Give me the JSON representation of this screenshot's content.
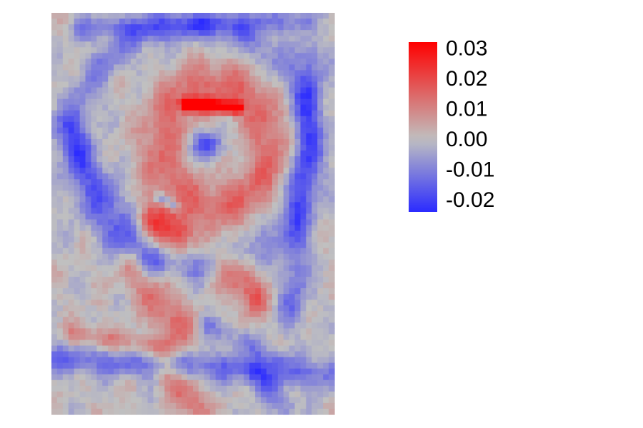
{
  "chart_data": {
    "type": "heatmap",
    "title": "",
    "xlabel": "",
    "ylabel": "",
    "axes_visible": false,
    "grid": false,
    "legend_position": "right",
    "value_range": [
      -0.024,
      0.032
    ],
    "colorscale": {
      "low": "#2b2bff",
      "mid": "#c0c0c0",
      "high": "#ff0000",
      "midpoint": 0
    },
    "colorbar_ticks": [
      {
        "value": 0.03,
        "label": "0.03"
      },
      {
        "value": 0.02,
        "label": "0.02"
      },
      {
        "value": 0.01,
        "label": "0.01"
      },
      {
        "value": 0.0,
        "label": "0.00"
      },
      {
        "value": -0.01,
        "label": "-0.01"
      },
      {
        "value": -0.02,
        "label": "-0.02"
      }
    ],
    "grid_shape": {
      "rows": 70,
      "cols": 50
    },
    "features": [
      {
        "kind": "ring",
        "cx": 0.58,
        "cy": 0.33,
        "rx": 0.19,
        "ry": 0.15,
        "width": 0.045,
        "value": 0.014
      },
      {
        "kind": "bar",
        "x1": 0.47,
        "y1": 0.227,
        "x2": 0.66,
        "y2": 0.236,
        "width": 0.012,
        "value": 0.032
      },
      {
        "kind": "blob",
        "cx": 0.55,
        "cy": 0.33,
        "rx": 0.06,
        "ry": 0.035,
        "value": -0.018
      },
      {
        "kind": "bar",
        "x1": 0.35,
        "y1": 0.52,
        "x2": 0.45,
        "y2": 0.55,
        "width": 0.035,
        "value": 0.02
      },
      {
        "kind": "bar",
        "x1": 0.3,
        "y1": 0.63,
        "x2": 0.45,
        "y2": 0.79,
        "width": 0.04,
        "value": 0.014
      },
      {
        "kind": "bar",
        "x1": 0.62,
        "y1": 0.63,
        "x2": 0.72,
        "y2": 0.71,
        "width": 0.035,
        "value": 0.016
      },
      {
        "kind": "bar",
        "x1": 0.05,
        "y1": 0.29,
        "x2": 0.35,
        "y2": 0.63,
        "width": 0.035,
        "value": -0.012
      },
      {
        "kind": "bar",
        "x1": 0.92,
        "y1": 0.12,
        "x2": 0.85,
        "y2": 0.74,
        "width": 0.035,
        "value": -0.012
      },
      {
        "kind": "bar",
        "x1": 0.02,
        "y1": 0.86,
        "x2": 0.98,
        "y2": 0.9,
        "width": 0.025,
        "value": -0.013
      },
      {
        "kind": "bar",
        "x1": 0.1,
        "y1": 0.04,
        "x2": 0.9,
        "y2": 0.02,
        "width": 0.02,
        "value": -0.011
      },
      {
        "kind": "bar",
        "x1": 0.42,
        "y1": 0.9,
        "x2": 0.52,
        "y2": 0.99,
        "width": 0.03,
        "value": 0.014
      },
      {
        "kind": "bar",
        "x1": 0.72,
        "y1": 0.9,
        "x2": 0.83,
        "y2": 0.98,
        "width": 0.025,
        "value": -0.01
      },
      {
        "kind": "bar",
        "x1": 0.38,
        "y1": 0.46,
        "x2": 0.44,
        "y2": 0.48,
        "width": 0.01,
        "value": -0.016
      },
      {
        "kind": "bar",
        "x1": 0.08,
        "y1": 0.8,
        "x2": 0.4,
        "y2": 0.84,
        "width": 0.02,
        "value": 0.01
      },
      {
        "kind": "bar",
        "x1": 0.55,
        "y1": 0.78,
        "x2": 0.8,
        "y2": 0.86,
        "width": 0.02,
        "value": -0.008
      },
      {
        "kind": "ring",
        "cx": 0.5,
        "cy": 0.33,
        "rx": 0.42,
        "ry": 0.3,
        "width": 0.03,
        "value": -0.009
      }
    ]
  }
}
